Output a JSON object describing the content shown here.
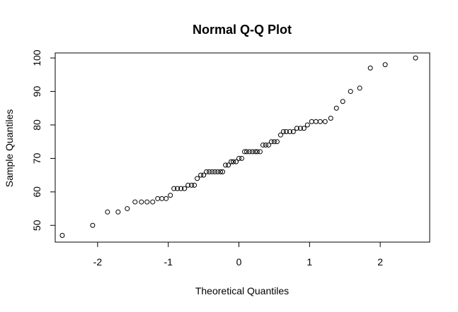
{
  "chart_data": {
    "type": "scatter",
    "title": "Normal Q-Q Plot",
    "xlabel": "Theoretical Quantiles",
    "ylabel": "Sample Quantiles",
    "xlim": [
      -2.6,
      2.7
    ],
    "ylim": [
      45,
      101.5
    ],
    "x_ticks": [
      -2,
      -1,
      0,
      1,
      2
    ],
    "x_tick_labels": [
      "-2",
      "-1",
      "0",
      "1",
      "2"
    ],
    "y_ticks": [
      50,
      60,
      70,
      80,
      90,
      100
    ],
    "y_tick_labels": [
      "50",
      "60",
      "70",
      "80",
      "90",
      "100"
    ],
    "grid": false,
    "marker": "open-circle",
    "series": [
      {
        "points": [
          [
            -2.5,
            47
          ],
          [
            -2.07,
            50
          ],
          [
            -1.86,
            54
          ],
          [
            -1.71,
            54
          ],
          [
            -1.58,
            55
          ],
          [
            -1.47,
            57
          ],
          [
            -1.38,
            57
          ],
          [
            -1.3,
            57
          ],
          [
            -1.22,
            57
          ],
          [
            -1.15,
            58
          ],
          [
            -1.09,
            58
          ],
          [
            -1.03,
            58
          ],
          [
            -0.97,
            59
          ],
          [
            -0.92,
            61
          ],
          [
            -0.87,
            61
          ],
          [
            -0.82,
            61
          ],
          [
            -0.77,
            61
          ],
          [
            -0.72,
            62
          ],
          [
            -0.67,
            62
          ],
          [
            -0.63,
            62
          ],
          [
            -0.59,
            64
          ],
          [
            -0.54,
            65
          ],
          [
            -0.5,
            65
          ],
          [
            -0.46,
            66
          ],
          [
            -0.42,
            66
          ],
          [
            -0.38,
            66
          ],
          [
            -0.34,
            66
          ],
          [
            -0.3,
            66
          ],
          [
            -0.26,
            66
          ],
          [
            -0.23,
            66
          ],
          [
            -0.19,
            68
          ],
          [
            -0.15,
            68
          ],
          [
            -0.11,
            69
          ],
          [
            -0.08,
            69
          ],
          [
            -0.04,
            69
          ],
          [
            0.0,
            70
          ],
          [
            0.04,
            70
          ],
          [
            0.08,
            72
          ],
          [
            0.11,
            72
          ],
          [
            0.15,
            72
          ],
          [
            0.19,
            72
          ],
          [
            0.23,
            72
          ],
          [
            0.26,
            72
          ],
          [
            0.3,
            72
          ],
          [
            0.34,
            74
          ],
          [
            0.38,
            74
          ],
          [
            0.42,
            74
          ],
          [
            0.46,
            75
          ],
          [
            0.5,
            75
          ],
          [
            0.54,
            75
          ],
          [
            0.59,
            77
          ],
          [
            0.63,
            78
          ],
          [
            0.67,
            78
          ],
          [
            0.72,
            78
          ],
          [
            0.77,
            78
          ],
          [
            0.82,
            79
          ],
          [
            0.87,
            79
          ],
          [
            0.92,
            79
          ],
          [
            0.97,
            80
          ],
          [
            1.03,
            81
          ],
          [
            1.09,
            81
          ],
          [
            1.15,
            81
          ],
          [
            1.22,
            81
          ],
          [
            1.3,
            82
          ],
          [
            1.38,
            85
          ],
          [
            1.47,
            87
          ],
          [
            1.58,
            90
          ],
          [
            1.71,
            91
          ],
          [
            1.86,
            97
          ],
          [
            2.07,
            98
          ],
          [
            2.5,
            100
          ]
        ]
      }
    ]
  }
}
